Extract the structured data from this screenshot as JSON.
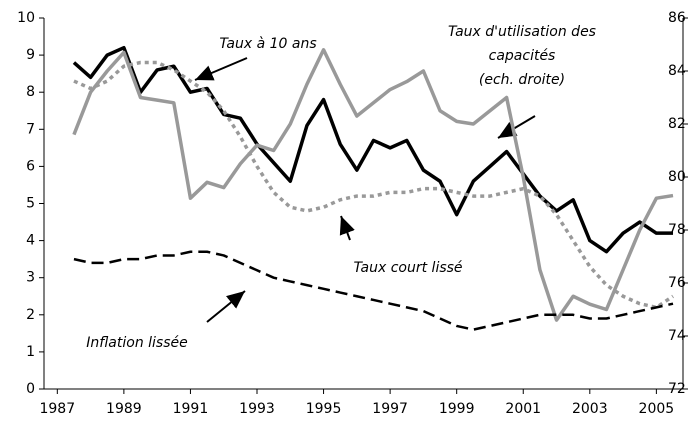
{
  "chart_data": {
    "type": "line",
    "x": [
      1987.5,
      1988,
      1988.5,
      1989,
      1989.5,
      1990,
      1990.5,
      1991,
      1991.5,
      1992,
      1992.5,
      1993,
      1993.5,
      1994,
      1994.5,
      1995,
      1995.5,
      1996,
      1996.5,
      1997,
      1997.5,
      1998,
      1998.5,
      1999,
      1999.5,
      2000,
      2000.5,
      2001,
      2001.5,
      2002,
      2002.5,
      2003,
      2003.5,
      2004,
      2004.5,
      2005,
      2005.5
    ],
    "series": [
      {
        "color": "#000000",
        "style": "solid",
        "values": [
          8.8,
          8.4,
          9.0,
          9.2,
          8.0,
          8.6,
          8.7,
          8.0,
          8.1,
          7.4,
          7.3,
          6.6,
          6.1,
          5.6,
          7.1,
          7.8,
          6.6,
          5.9,
          6.7,
          6.5,
          6.7,
          5.9,
          5.6,
          4.7,
          5.6,
          6.0,
          6.4,
          5.8,
          5.2,
          4.8,
          5.1,
          4.0,
          3.7,
          4.2,
          4.5,
          4.2,
          4.2
        ]
      },
      {
        "color": "#999999",
        "style": "solid",
        "axis": "y2",
        "values": [
          81.6,
          83.2,
          84.0,
          84.7,
          83.0,
          82.9,
          82.8,
          79.2,
          79.8,
          79.6,
          80.5,
          81.2,
          81.0,
          82.0,
          83.5,
          84.8,
          83.5,
          82.3,
          82.8,
          83.3,
          83.6,
          84.0,
          82.5,
          82.1,
          82.0,
          82.5,
          83.0,
          80.0,
          76.5,
          74.6,
          75.5,
          75.2,
          75.0,
          76.5,
          78.0,
          79.2,
          79.3
        ]
      },
      {
        "color": "#999999",
        "style": "dotted",
        "values": [
          8.3,
          8.1,
          8.3,
          8.7,
          8.8,
          8.8,
          8.6,
          8.3,
          8.0,
          7.5,
          6.8,
          6.0,
          5.3,
          4.9,
          4.8,
          4.9,
          5.1,
          5.2,
          5.2,
          5.3,
          5.3,
          5.4,
          5.4,
          5.3,
          5.2,
          5.2,
          5.3,
          5.4,
          5.2,
          4.7,
          4.0,
          3.3,
          2.8,
          2.5,
          2.3,
          2.2,
          2.5
        ]
      },
      {
        "color": "#000000",
        "style": "dashed",
        "values": [
          3.5,
          3.4,
          3.4,
          3.5,
          3.5,
          3.6,
          3.6,
          3.7,
          3.7,
          3.6,
          3.4,
          3.2,
          3.0,
          2.9,
          2.8,
          2.7,
          2.6,
          2.5,
          2.4,
          2.3,
          2.2,
          2.1,
          1.9,
          1.7,
          1.6,
          1.7,
          1.8,
          1.9,
          2.0,
          2.0,
          2.0,
          1.9,
          1.9,
          2.0,
          2.1,
          2.2,
          2.3
        ]
      }
    ],
    "xlim": [
      1986.6,
      2005.8
    ],
    "xticks": [
      1987,
      1989,
      1991,
      1993,
      1995,
      1997,
      1999,
      2001,
      2003,
      2005
    ],
    "ylim": [
      0,
      10
    ],
    "yticks": [
      0,
      1,
      2,
      3,
      4,
      5,
      6,
      7,
      8,
      9,
      10
    ],
    "y2lim": [
      72,
      86
    ],
    "y2ticks": [
      72,
      74,
      76,
      78,
      80,
      82,
      84,
      86
    ],
    "annotations": [
      [
        "Taux à 10 ans"
      ],
      [
        "Taux d'utilisation des",
        "capacités",
        "(ech. droite)"
      ],
      [
        "Taux court lissé"
      ],
      [
        "Inflation lissée"
      ]
    ]
  }
}
